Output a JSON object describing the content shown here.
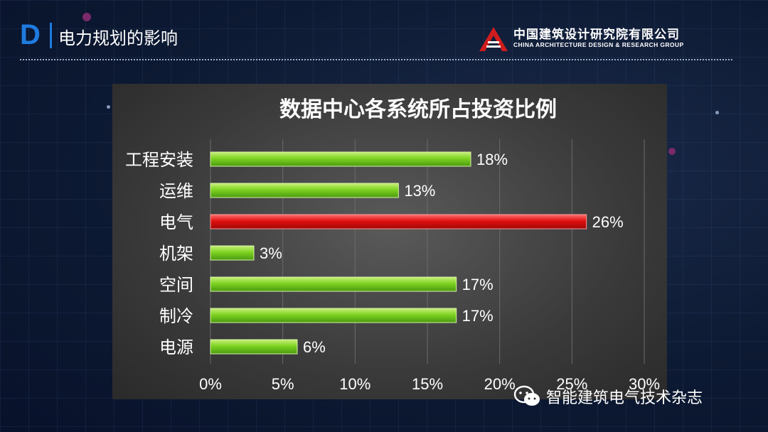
{
  "header": {
    "logo_letter": "D",
    "section_title": "电力规划的影响",
    "company_cn": "中国建筑设计研究院有限公司",
    "company_en": "CHINA ARCHITECTURE DESIGN & RESEARCH GROUP"
  },
  "watermark": {
    "icon": "wechat-icon",
    "text": "智能建筑电气技术杂志"
  },
  "colors": {
    "normal_bar": "#7ed321",
    "highlight_bar": "#e01010",
    "accent": "#1e7be0"
  },
  "chart_data": {
    "type": "bar",
    "orientation": "horizontal",
    "title": "数据中心各系统所占投资比例",
    "categories": [
      "工程安装",
      "运维",
      "电气",
      "机架",
      "空间",
      "制冷",
      "电源"
    ],
    "values": [
      18,
      13,
      26,
      3,
      17,
      17,
      6
    ],
    "value_labels": [
      "18%",
      "13%",
      "26%",
      "3%",
      "17%",
      "17%",
      "6%"
    ],
    "highlight_category": "电气",
    "xlim": [
      0,
      30
    ],
    "x_ticks": [
      0,
      5,
      10,
      15,
      20,
      25,
      30
    ],
    "x_tick_labels": [
      "0%",
      "5%",
      "10%",
      "15%",
      "20%",
      "25%",
      "30%"
    ],
    "grid": "vertical",
    "legend": "none"
  }
}
